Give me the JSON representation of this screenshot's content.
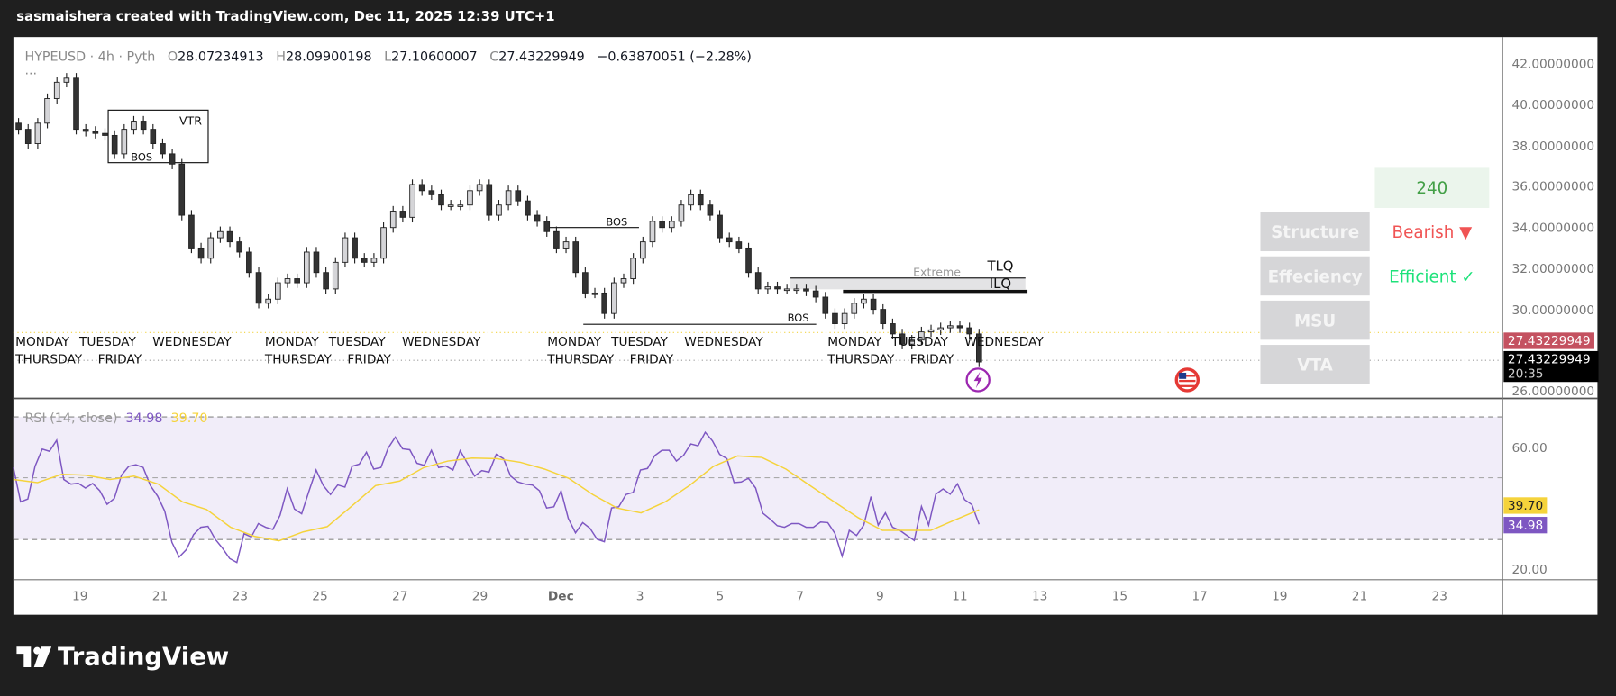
{
  "topbar": {
    "caption": "sasmaishera created with TradingView.com, Dec 11, 2025 12:39 UTC+1"
  },
  "legend": {
    "symbol": "HYPEUSD · 4h · Pyth",
    "open_label": "O",
    "open": "28.07234913",
    "high_label": "H",
    "high": "28.09900198",
    "low_label": "L",
    "low": "27.10600007",
    "close_label": "C",
    "close": "27.43229949",
    "change": "−0.63870051 (−2.28%)",
    "more": "..."
  },
  "price_axis": {
    "labels": [
      "42.00000000",
      "40.00000000",
      "38.00000000",
      "36.00000000",
      "34.00000000",
      "32.00000000",
      "30.00000000",
      "26.00000000"
    ],
    "last_price": "27.43229949",
    "crosshair_price": "27.43229949",
    "countdown": "20:35"
  },
  "panel": {
    "timeframe": "240",
    "rows": [
      {
        "label": "Structure",
        "value": "Bearish ▼",
        "color": "#f05454"
      },
      {
        "label": "Effeciency",
        "value": "Efficient ✓",
        "color": "#1de27a"
      },
      {
        "label": "MSU",
        "value": ""
      },
      {
        "label": "VTA",
        "value": ""
      }
    ]
  },
  "annotations": {
    "vtr": "VTR",
    "bos": "BOS",
    "extreme": "Extreme",
    "tlq": "TLQ",
    "ilq": "ILQ",
    "days": [
      "MONDAY",
      "TUESDAY",
      "WEDNESDAY",
      "THURSDAY",
      "FRIDAY"
    ]
  },
  "rsi": {
    "title": "RSI (14, close)",
    "value": "34.98",
    "signal": "39.70",
    "axis_labels": [
      "60.00",
      "20.00"
    ],
    "colors": {
      "rsi": "#7e57c2",
      "signal": "#f5d33b"
    }
  },
  "time_axis": {
    "labels": [
      "19",
      "21",
      "23",
      "25",
      "27",
      "29",
      "Dec",
      "3",
      "5",
      "7",
      "9",
      "11",
      "13",
      "15",
      "17",
      "19",
      "21",
      "23"
    ]
  },
  "footer": {
    "logo": "TradingView"
  },
  "chart_data": [
    {
      "type": "candlestick",
      "title": "HYPEUSD · 4h · Pyth",
      "x_range": [
        "Nov 17",
        "Dec 11"
      ],
      "ylim": [
        26,
        42
      ],
      "closes": [
        38.8,
        38.1,
        39.1,
        40.3,
        41.1,
        41.3,
        38.8,
        38.7,
        38.6,
        38.5,
        37.6,
        38.8,
        39.2,
        38.8,
        38.1,
        37.6,
        37.1,
        34.6,
        33.0,
        32.5,
        33.5,
        33.8,
        33.3,
        32.8,
        31.8,
        30.3,
        30.5,
        31.3,
        31.5,
        31.3,
        32.8,
        31.8,
        31.0,
        32.3,
        33.5,
        32.5,
        32.3,
        32.5,
        34.0,
        34.8,
        34.5,
        36.1,
        35.8,
        35.6,
        35.1,
        35.1,
        35.1,
        35.8,
        36.1,
        34.6,
        35.1,
        35.8,
        35.3,
        34.6,
        34.3,
        33.8,
        33.0,
        33.3,
        31.8,
        30.8,
        30.8,
        29.8,
        31.3,
        31.5,
        32.5,
        33.3,
        34.3,
        34.0,
        34.3,
        35.1,
        35.6,
        35.1,
        34.6,
        33.5,
        33.3,
        33.0,
        31.8,
        31.0,
        31.1,
        31.0,
        31.0,
        31.0,
        30.9,
        30.6,
        29.8,
        29.3,
        29.8,
        30.3,
        30.5,
        30.0,
        29.3,
        28.8,
        28.3,
        28.5,
        28.9,
        29.0,
        29.1,
        29.2,
        29.1,
        28.8,
        27.43
      ]
    },
    {
      "type": "line",
      "title": "RSI (14, close)",
      "ylim": [
        20,
        70
      ],
      "series": [
        {
          "name": "RSI",
          "values": [
            53.5,
            42.3,
            43.2,
            53.9,
            59.5,
            58.8,
            62.4,
            49.6,
            48.1,
            48.4,
            46.8,
            48.3,
            45.9,
            41.5,
            43.4,
            51,
            53.9,
            54.4,
            53.5,
            47.6,
            44.2,
            39.3,
            29.1,
            24.3,
            26.7,
            31.6,
            34,
            34.3,
            30.1,
            27.2,
            23.8,
            22.5,
            31.9,
            30.8,
            35.2,
            34,
            33.3,
            37.9,
            46.6,
            40,
            38.4,
            45.7,
            52.7,
            47.6,
            44.7,
            47.8,
            47.1,
            53.9,
            54.6,
            58.5,
            53,
            53.5,
            59.8,
            63.4,
            59.6,
            59.3,
            54.9,
            54.2,
            59.1,
            53.5,
            54,
            52.7,
            59,
            54.9,
            50.7,
            52.5,
            52,
            57.8,
            56.4,
            50.7,
            48.8,
            48.1,
            47.8,
            45.9,
            40.3,
            40.7,
            45.9,
            36.9,
            32.2,
            35.5,
            33.7,
            30.1,
            29.3,
            40.3,
            40.7,
            44.7,
            45.4,
            52.7,
            53.2,
            57.4,
            59.1,
            59.1,
            55.6,
            57.5,
            61.2,
            60.6,
            65,
            62.2,
            57.8,
            56.4,
            48.6,
            48.8,
            50,
            46.8,
            38.6,
            36.7,
            34.5,
            34,
            35.2,
            35.2,
            34,
            34,
            35.7,
            35.5,
            32,
            24.6,
            33,
            31.3,
            34.7,
            44,
            34.7,
            38.7,
            34,
            33,
            31.3,
            29.7,
            40.8,
            34.7,
            44.8,
            46.5,
            44.8,
            48.2,
            43,
            41.4,
            34.98
          ]
        },
        {
          "name": "RSI-based MA",
          "values": [
            49.6,
            48.6,
            51.3,
            51,
            49.6,
            50.7,
            48.1,
            42.3,
            39.8,
            34,
            31,
            29.6,
            32.5,
            34.2,
            40.8,
            47.6,
            49.1,
            53.5,
            55.6,
            56.6,
            56.4,
            55.2,
            53,
            50,
            44.7,
            40.3,
            38.7,
            42.3,
            47.6,
            53.9,
            57.3,
            56.8,
            53,
            47.6,
            42.3,
            37.1,
            33,
            33,
            33,
            36.4,
            39.7
          ]
        }
      ],
      "reference_lines": [
        70,
        50,
        30
      ]
    }
  ]
}
